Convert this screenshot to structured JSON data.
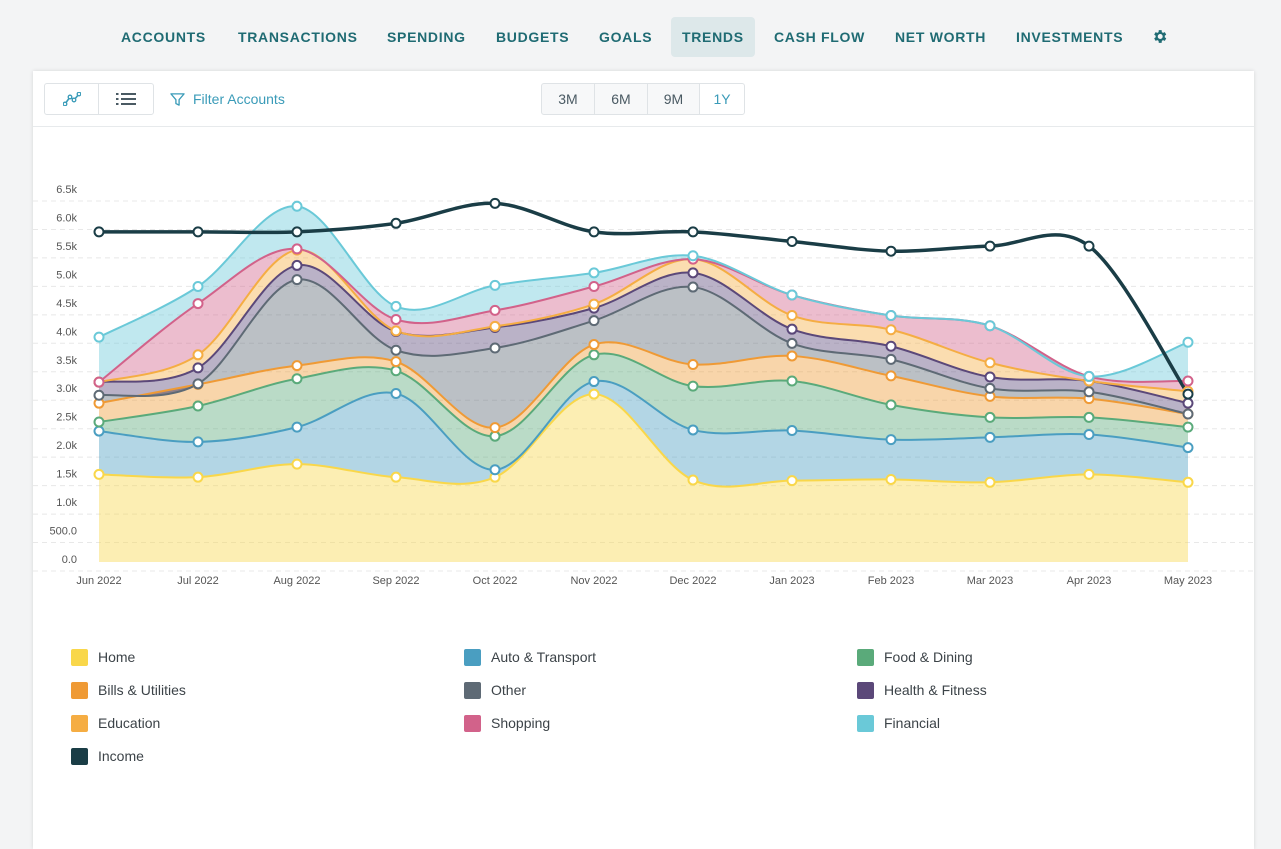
{
  "nav": {
    "items": [
      {
        "label": "ACCOUNTS",
        "active": false
      },
      {
        "label": "TRANSACTIONS",
        "active": false
      },
      {
        "label": "SPENDING",
        "active": false
      },
      {
        "label": "BUDGETS",
        "active": false
      },
      {
        "label": "GOALS",
        "active": false
      },
      {
        "label": "TRENDS",
        "active": true
      },
      {
        "label": "CASH FLOW",
        "active": false
      },
      {
        "label": "NET WORTH",
        "active": false
      },
      {
        "label": "INVESTMENTS",
        "active": false
      }
    ],
    "settings_icon": "gear-icon"
  },
  "toolbar": {
    "chart_view_icon": "line-chart-icon",
    "list_view_icon": "list-icon",
    "filter_icon": "filter-icon",
    "filter_label": "Filter Accounts",
    "ranges": [
      {
        "label": "3M",
        "active": false
      },
      {
        "label": "6M",
        "active": false
      },
      {
        "label": "9M",
        "active": false
      },
      {
        "label": "1Y",
        "active": true
      }
    ]
  },
  "chart_data": {
    "type": "area",
    "stacked": true,
    "x": [
      "Jun 2022",
      "Jul 2022",
      "Aug 2022",
      "Sep 2022",
      "Oct 2022",
      "Nov 2022",
      "Dec 2022",
      "Jan 2023",
      "Feb 2023",
      "Mar 2023",
      "Apr 2023",
      "May 2023"
    ],
    "y_ticks": [
      "0.0",
      "500.0",
      "1.0k",
      "1.5k",
      "2.0k",
      "2.5k",
      "3.0k",
      "3.5k",
      "4.0k",
      "4.5k",
      "5.0k",
      "5.5k",
      "6.0k",
      "6.5k"
    ],
    "ylim": [
      0,
      6500
    ],
    "grid": true,
    "legend_position": "bottom",
    "series": [
      {
        "name": "Home",
        "color": "#f9d74a",
        "values": [
          1540,
          1490,
          1720,
          1490,
          1490,
          2950,
          1440,
          1430,
          1450,
          1400,
          1540,
          1400
        ]
      },
      {
        "name": "Auto & Transport",
        "color": "#4a9ec1",
        "values": [
          760,
          620,
          650,
          1470,
          130,
          220,
          880,
          880,
          700,
          790,
          700,
          610
        ]
      },
      {
        "name": "Food & Dining",
        "color": "#5aaa7a",
        "values": [
          160,
          630,
          850,
          400,
          590,
          470,
          770,
          870,
          610,
          350,
          300,
          360
        ]
      },
      {
        "name": "Bills & Utilities",
        "color": "#ef9a35",
        "values": [
          330,
          380,
          230,
          160,
          150,
          180,
          380,
          440,
          510,
          370,
          330,
          230
        ]
      },
      {
        "name": "Other",
        "color": "#5e6a75",
        "values": [
          140,
          10,
          1510,
          200,
          1400,
          420,
          1360,
          220,
          290,
          140,
          120,
          0
        ]
      },
      {
        "name": "Health & Fitness",
        "color": "#5b4879",
        "values": [
          230,
          280,
          250,
          330,
          360,
          220,
          250,
          250,
          230,
          200,
          190,
          190
        ]
      },
      {
        "name": "Education",
        "color": "#f5ad43",
        "values": [
          0,
          230,
          270,
          10,
          20,
          70,
          240,
          240,
          290,
          250,
          0,
          210
        ]
      },
      {
        "name": "Shopping",
        "color": "#d2628a",
        "values": [
          0,
          900,
          20,
          200,
          280,
          310,
          0,
          360,
          250,
          650,
          80,
          180
        ]
      },
      {
        "name": "Financial",
        "color": "#6ac9d8",
        "values": [
          790,
          300,
          750,
          230,
          440,
          240,
          60,
          0,
          0,
          0,
          0,
          680
        ]
      }
    ],
    "income": {
      "name": "Income",
      "color": "#1a3d46",
      "values": [
        5800,
        5800,
        5800,
        5950,
        6300,
        5800,
        5800,
        5630,
        5460,
        5550,
        5550,
        2950
      ]
    }
  }
}
